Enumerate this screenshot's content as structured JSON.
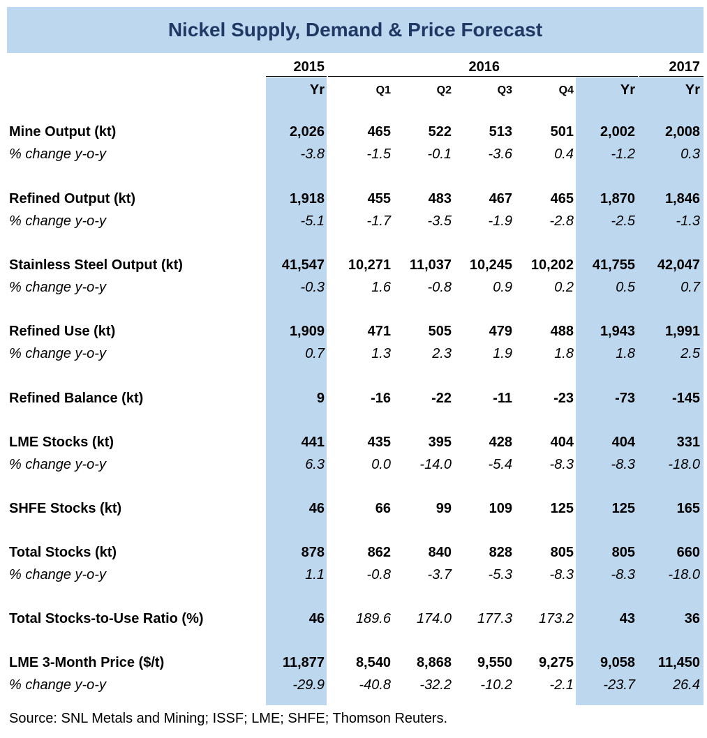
{
  "title": "Nickel Supply, Demand & Price Forecast",
  "header": {
    "years": [
      "2015",
      "2016",
      "2017"
    ],
    "columns": [
      "Yr",
      "Q1",
      "Q2",
      "Q3",
      "Q4",
      "Yr",
      "Yr"
    ]
  },
  "rows": [
    {
      "label": "Mine Output (kt)",
      "style": "bold",
      "values": [
        "2,026",
        "465",
        "522",
        "513",
        "501",
        "2,002",
        "2,008"
      ]
    },
    {
      "label": "% change y-o-y",
      "style": "ital",
      "values": [
        "-3.8",
        "-1.5",
        "-0.1",
        "-3.6",
        "0.4",
        "-1.2",
        "0.3"
      ]
    },
    {
      "label": "Refined Output (kt)",
      "style": "bold",
      "values": [
        "1,918",
        "455",
        "483",
        "467",
        "465",
        "1,870",
        "1,846"
      ]
    },
    {
      "label": "% change y-o-y",
      "style": "ital",
      "values": [
        "-5.1",
        "-1.7",
        "-3.5",
        "-1.9",
        "-2.8",
        "-2.5",
        "-1.3"
      ]
    },
    {
      "label": "Stainless Steel Output (kt)",
      "style": "bold",
      "values": [
        "41,547",
        "10,271",
        "11,037",
        "10,245",
        "10,202",
        "41,755",
        "42,047"
      ]
    },
    {
      "label": "% change y-o-y",
      "style": "ital",
      "values": [
        "-0.3",
        "1.6",
        "-0.8",
        "0.9",
        "0.2",
        "0.5",
        "0.7"
      ]
    },
    {
      "label": "Refined Use (kt)",
      "style": "bold",
      "values": [
        "1,909",
        "471",
        "505",
        "479",
        "488",
        "1,943",
        "1,991"
      ]
    },
    {
      "label": "% change y-o-y",
      "style": "ital",
      "values": [
        "0.7",
        "1.3",
        "2.3",
        "1.9",
        "1.8",
        "1.8",
        "2.5"
      ]
    },
    {
      "label": "Refined Balance (kt)",
      "style": "bold",
      "values": [
        "9",
        "-16",
        "-22",
        "-11",
        "-23",
        "-73",
        "-145"
      ]
    },
    {
      "label": "LME Stocks (kt)",
      "style": "bold",
      "values": [
        "441",
        "435",
        "395",
        "428",
        "404",
        "404",
        "331"
      ]
    },
    {
      "label": "% change y-o-y",
      "style": "ital",
      "values": [
        "6.3",
        "0.0",
        "-14.0",
        "-5.4",
        "-8.3",
        "-8.3",
        "-18.0"
      ]
    },
    {
      "label": "SHFE Stocks (kt)",
      "style": "bold",
      "values": [
        "46",
        "66",
        "99",
        "109",
        "125",
        "125",
        "165"
      ]
    },
    {
      "label": "Total Stocks (kt)",
      "style": "bold",
      "values": [
        "878",
        "862",
        "840",
        "828",
        "805",
        "805",
        "660"
      ]
    },
    {
      "label": "% change y-o-y",
      "style": "ital",
      "values": [
        "1.1",
        "-0.8",
        "-3.7",
        "-5.3",
        "-8.3",
        "-8.3",
        "-18.0"
      ]
    },
    {
      "label": "Total Stocks-to-Use Ratio (%)",
      "style": "bold",
      "values": [
        "46",
        "189.6",
        "174.0",
        "177.3",
        "173.2",
        "43",
        "36"
      ],
      "value_styles": [
        "bold",
        "ital",
        "ital",
        "ital",
        "ital",
        "bold",
        "bold"
      ]
    },
    {
      "label": "LME 3-Month Price ($/t)",
      "style": "bold",
      "values": [
        "11,877",
        "8,540",
        "8,868",
        "9,550",
        "9,275",
        "9,058",
        "11,450"
      ]
    },
    {
      "label": "% change y-o-y",
      "style": "ital",
      "values": [
        "-29.9",
        "-40.8",
        "-32.2",
        "-10.2",
        "-2.1",
        "-23.7",
        "26.4"
      ]
    }
  ],
  "source": "Source: SNL Metals and Mining; ISSF; LME; SHFE; Thomson Reuters."
}
